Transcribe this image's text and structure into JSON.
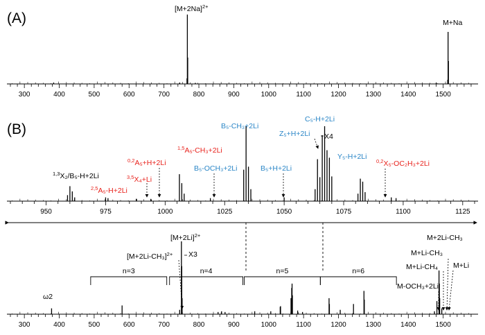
{
  "colors": {
    "black": "#000000",
    "red": "#e8211b",
    "blue": "#2a86c7"
  },
  "panel_labels": {
    "a": "(A)",
    "b": "(B)"
  },
  "chart_data": [
    {
      "type": "bar",
      "panel": "A",
      "xlim": [
        260,
        1590
      ],
      "xticks": [
        300,
        400,
        500,
        600,
        700,
        800,
        900,
        1000,
        1100,
        1200,
        1300,
        1400,
        1500
      ],
      "peaks": [
        {
          "x": 767,
          "y": 100
        },
        {
          "x": 768,
          "y": 38
        },
        {
          "x": 766,
          "y": 8
        },
        {
          "x": 1514,
          "y": 75
        },
        {
          "x": 1515,
          "y": 33
        },
        {
          "x": 1513,
          "y": 6
        },
        {
          "x": 384,
          "y": 2
        },
        {
          "x": 745,
          "y": 2
        },
        {
          "x": 790,
          "y": 1.5
        },
        {
          "x": 1480,
          "y": 2
        }
      ],
      "labels": [
        {
          "text": "[M+2Na]",
          "sup": "2+",
          "color": "black"
        },
        {
          "text": "M+Na",
          "color": "black"
        }
      ]
    },
    {
      "type": "bar",
      "panel": "B-zoom",
      "xlim": [
        935,
        1130
      ],
      "xticks": [
        950,
        975,
        1000,
        1025,
        1050,
        1075,
        1100,
        1125
      ],
      "peaks": [
        {
          "x": 959,
          "y": 8
        },
        {
          "x": 960,
          "y": 20
        },
        {
          "x": 961,
          "y": 13
        },
        {
          "x": 962,
          "y": 5
        },
        {
          "x": 975,
          "y": 5
        },
        {
          "x": 976,
          "y": 4
        },
        {
          "x": 988,
          "y": 3
        },
        {
          "x": 994,
          "y": 3
        },
        {
          "x": 1006,
          "y": 36
        },
        {
          "x": 1007,
          "y": 24
        },
        {
          "x": 1008,
          "y": 10
        },
        {
          "x": 1019,
          "y": 4
        },
        {
          "x": 1033,
          "y": 42
        },
        {
          "x": 1034,
          "y": 100
        },
        {
          "x": 1035,
          "y": 46
        },
        {
          "x": 1036,
          "y": 16
        },
        {
          "x": 1050,
          "y": 5
        },
        {
          "x": 1063,
          "y": 16
        },
        {
          "x": 1064,
          "y": 56
        },
        {
          "x": 1065,
          "y": 32
        },
        {
          "x": 1066,
          "y": 88
        },
        {
          "x": 1067,
          "y": 100
        },
        {
          "x": 1068,
          "y": 68
        },
        {
          "x": 1069,
          "y": 58
        },
        {
          "x": 1070,
          "y": 33
        },
        {
          "x": 1081,
          "y": 10
        },
        {
          "x": 1082,
          "y": 30
        },
        {
          "x": 1083,
          "y": 26
        },
        {
          "x": 1084,
          "y": 12
        },
        {
          "x": 1095,
          "y": 5
        },
        {
          "x": 1097,
          "y": 4
        }
      ],
      "labels": [
        {
          "pre": "1,3",
          "text": "X₂/B₅-H+2Li",
          "color": "black"
        },
        {
          "pre": "2,5",
          "text": "A₅-H+2Li",
          "color": "red"
        },
        {
          "pre": "3,5",
          "text": "X₄+Li",
          "color": "red"
        },
        {
          "pre": "0,2",
          "text": "A₅+H+2Li",
          "color": "red"
        },
        {
          "pre": "1,5",
          "text": "A₅-CH₃+2Li",
          "color": "red"
        },
        {
          "text": "B₅-OCH₃+2Li",
          "color": "blue"
        },
        {
          "text": "B₅-CH₃+2Li",
          "color": "blue"
        },
        {
          "text": "B₅+H+2Li",
          "color": "blue"
        },
        {
          "text": "Z₅+H+2Li",
          "color": "blue"
        },
        {
          "text": "C₅-H+2Li",
          "color": "blue"
        },
        {
          "text": "X4",
          "color": "black"
        },
        {
          "text": "Y₅-H+2Li",
          "color": "blue"
        },
        {
          "pre": "0,2",
          "text": "X₅-OC₂H₃+2Li",
          "color": "red"
        }
      ]
    },
    {
      "type": "bar",
      "panel": "B-full",
      "xlim": [
        260,
        1590
      ],
      "xticks": [
        300,
        400,
        500,
        600,
        700,
        800,
        900,
        1000,
        1100,
        1200,
        1300,
        1400,
        1500
      ],
      "peaks": [
        {
          "x": 378,
          "y": 8
        },
        {
          "x": 580,
          "y": 12
        },
        {
          "x": 745,
          "y": 6
        },
        {
          "x": 750,
          "y": 100
        },
        {
          "x": 751,
          "y": 66
        },
        {
          "x": 752,
          "y": 22
        },
        {
          "x": 855,
          "y": 3
        },
        {
          "x": 865,
          "y": 4
        },
        {
          "x": 875,
          "y": 3
        },
        {
          "x": 960,
          "y": 4
        },
        {
          "x": 1006,
          "y": 4
        },
        {
          "x": 1033,
          "y": 10
        },
        {
          "x": 1034,
          "y": 11
        },
        {
          "x": 1064,
          "y": 22
        },
        {
          "x": 1066,
          "y": 36
        },
        {
          "x": 1067,
          "y": 42
        },
        {
          "x": 1068,
          "y": 26
        },
        {
          "x": 1083,
          "y": 5
        },
        {
          "x": 1097,
          "y": 3
        },
        {
          "x": 1173,
          "y": 22
        },
        {
          "x": 1174,
          "y": 14
        },
        {
          "x": 1205,
          "y": 6
        },
        {
          "x": 1243,
          "y": 14
        },
        {
          "x": 1273,
          "y": 32
        },
        {
          "x": 1274,
          "y": 20
        },
        {
          "x": 1475,
          "y": 4
        },
        {
          "x": 1482,
          "y": 18
        },
        {
          "x": 1488,
          "y": 60
        },
        {
          "x": 1489,
          "y": 42
        },
        {
          "x": 1490,
          "y": 22
        },
        {
          "x": 1496,
          "y": 8
        }
      ],
      "series_brackets": [
        {
          "label": "n=3",
          "from": 490,
          "to": 708
        },
        {
          "label": "n=4",
          "from": 716,
          "to": 926
        },
        {
          "label": "n=5",
          "from": 930,
          "to": 1148
        },
        {
          "label": "n=6",
          "from": 1148,
          "to": 1366
        }
      ],
      "labels": [
        {
          "text": "ω2",
          "color": "black"
        },
        {
          "text": "[M+2Li-CH₃]",
          "sup": "2+",
          "color": "black"
        },
        {
          "text": "[M+2Li]",
          "sup": "2+",
          "color": "black"
        },
        {
          "text": "X3",
          "color": "black"
        },
        {
          "text": "M+2Li-CH₃",
          "color": "black"
        },
        {
          "text": "M+Li-CH₃",
          "color": "black"
        },
        {
          "text": "M+Li-CH₄",
          "color": "black"
        },
        {
          "text": "M+Li",
          "color": "black"
        },
        {
          "text": "M-OCH₃+2Li",
          "color": "black"
        }
      ]
    }
  ]
}
